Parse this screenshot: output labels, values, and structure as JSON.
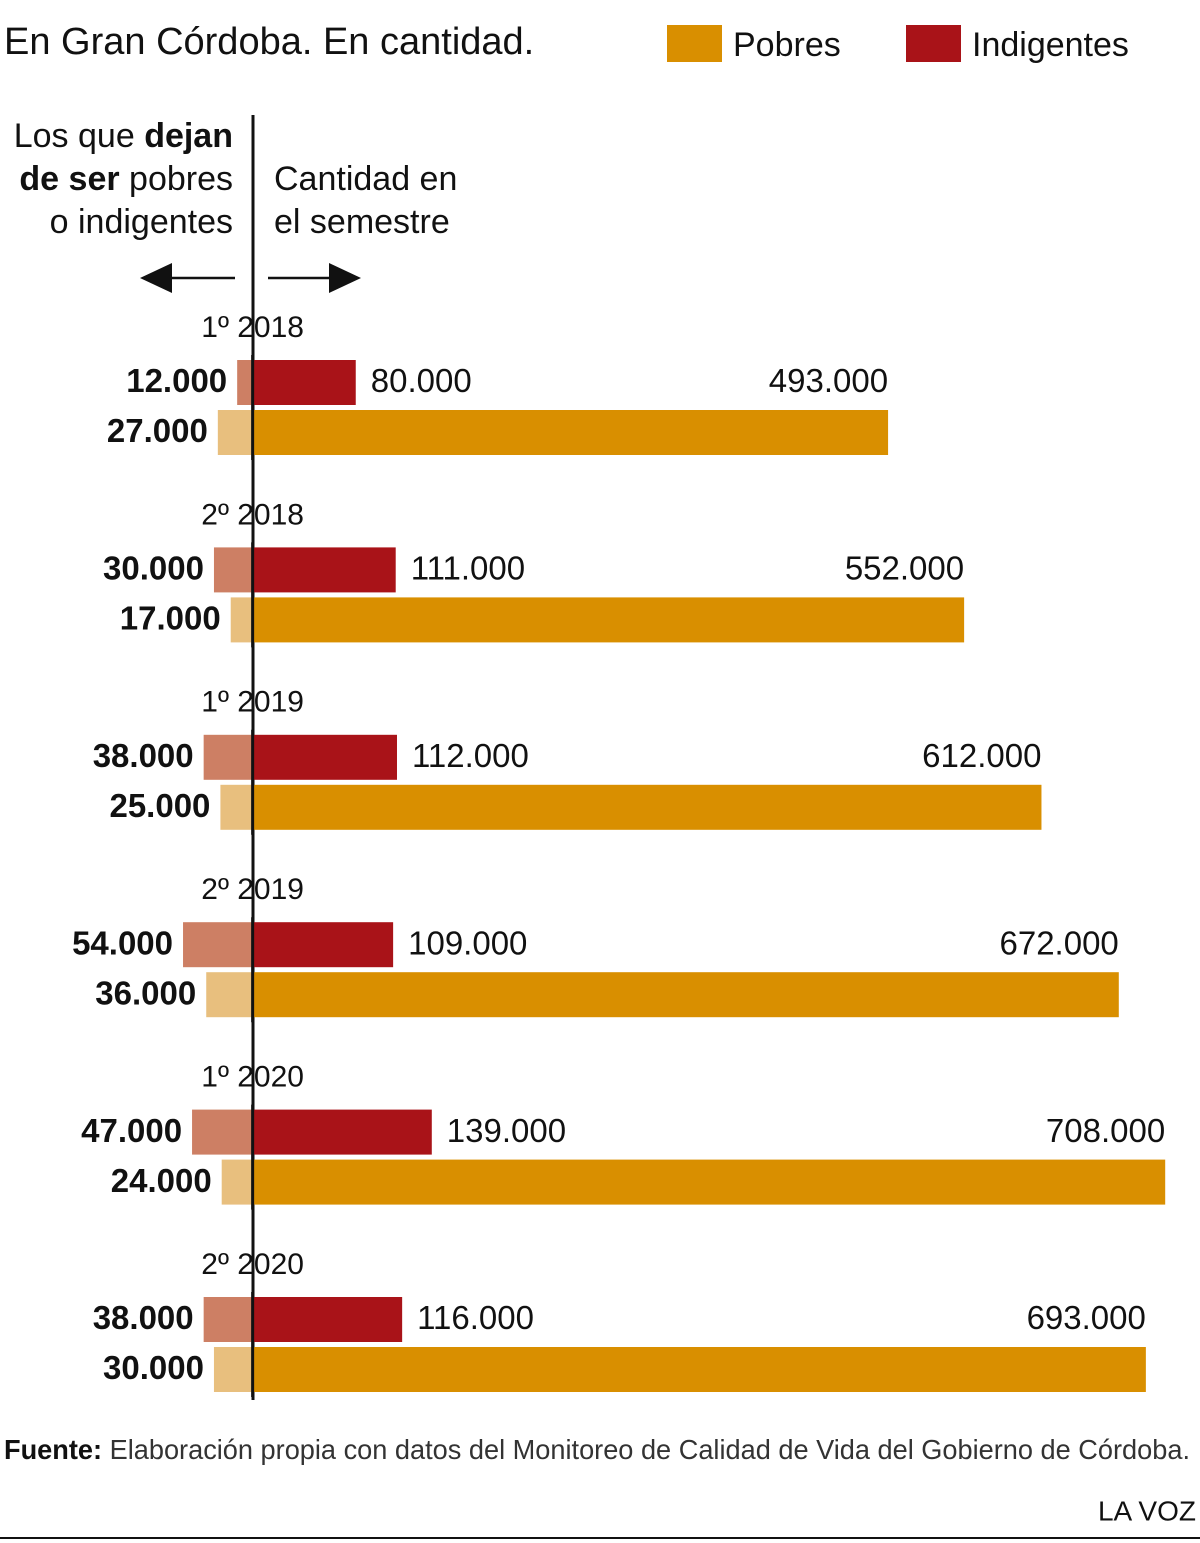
{
  "chart_data": {
    "type": "diverging-bar",
    "title": "En Gran Córdoba. En cantidad.",
    "left_header": [
      [
        {
          "text": "Los que "
        },
        {
          "text": "dejan",
          "bold": true
        }
      ],
      [
        {
          "text": "de ser",
          "bold": true
        },
        {
          "text": " pobres"
        }
      ],
      [
        {
          "text": "o indigentes"
        }
      ]
    ],
    "right_header": [
      "Cantidad en",
      "el semestre"
    ],
    "categories": [
      "1º 2018",
      "2º 2018",
      "1º 2019",
      "2º 2019",
      "1º 2020",
      "2º 2020"
    ],
    "series": [
      {
        "name": "Indigentes",
        "color": "#a91318",
        "values": [
          80000,
          111000,
          112000,
          109000,
          139000,
          116000
        ],
        "value_labels": [
          "80.000",
          "111.000",
          "112.000",
          "109.000",
          "139.000",
          "116.000"
        ],
        "exits": {
          "color": "#cd7f64",
          "values": [
            12000,
            30000,
            38000,
            54000,
            47000,
            38000
          ],
          "value_labels": [
            "12.000",
            "30.000",
            "38.000",
            "54.000",
            "47.000",
            "38.000"
          ]
        }
      },
      {
        "name": "Pobres",
        "color": "#d98f00",
        "values": [
          493000,
          552000,
          612000,
          672000,
          708000,
          693000
        ],
        "value_labels": [
          "493.000",
          "552.000",
          "612.000",
          "672.000",
          "708.000",
          "693.000"
        ],
        "exits": {
          "color": "#e8bf7e",
          "values": [
            27000,
            17000,
            25000,
            36000,
            24000,
            30000
          ],
          "value_labels": [
            "27.000",
            "17.000",
            "25.000",
            "36.000",
            "24.000",
            "30.000"
          ]
        }
      }
    ],
    "xlim": [
      -196000,
      735000
    ],
    "source": {
      "label": "Fuente:",
      "text": " Elaboración propia con datos del Monitoreo de Calidad de Vida del Gobierno de Córdoba."
    },
    "brand": "LA VOZ"
  }
}
